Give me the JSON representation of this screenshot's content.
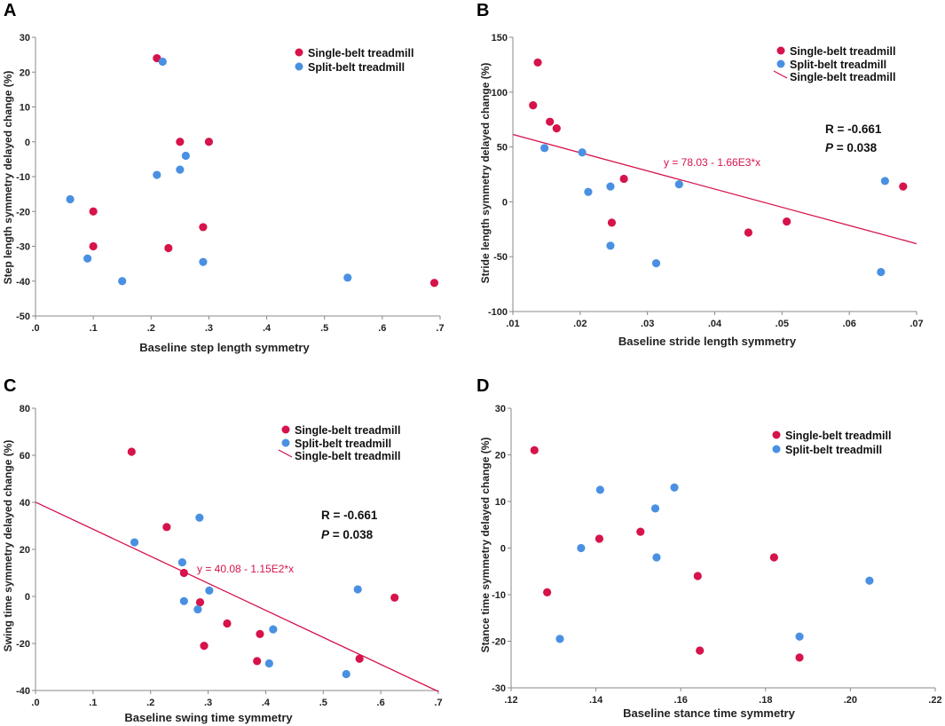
{
  "colors": {
    "single": "#d6134a",
    "split": "#4a90e2",
    "fit": "#d6134a"
  },
  "chart_data": [
    {
      "type": "scatter",
      "panel_label": "A",
      "xlabel": "Baseline step length symmetry",
      "ylabel": "Step length symmetry delayed change (%)",
      "xlim": [
        0,
        0.7
      ],
      "ylim": [
        -50,
        30
      ],
      "xticks": [
        0,
        0.1,
        0.2,
        0.3,
        0.4,
        0.5,
        0.6,
        0.7
      ],
      "xtick_labels": [
        ".0",
        ".1",
        ".2",
        ".3",
        ".4",
        ".5",
        ".6",
        ".7"
      ],
      "yticks": [
        -50,
        -40,
        -30,
        -20,
        -10,
        0,
        10,
        20,
        30
      ],
      "ytick_labels": [
        "-50",
        "-40",
        "-30",
        "-20",
        "-10",
        "0",
        "10",
        "20",
        "30"
      ],
      "legend": [
        "Single-belt treadmill",
        "Split-belt treadmill"
      ],
      "series": [
        {
          "name": "Single-belt treadmill",
          "points": [
            [
              0.1,
              -20
            ],
            [
              0.1,
              -30
            ],
            [
              0.21,
              24
            ],
            [
              0.25,
              0
            ],
            [
              0.3,
              0
            ],
            [
              0.23,
              -30.5
            ],
            [
              0.29,
              -24.5
            ],
            [
              0.69,
              -40.5
            ]
          ]
        },
        {
          "name": "Split-belt treadmill",
          "points": [
            [
              0.06,
              -16.5
            ],
            [
              0.09,
              -33.5
            ],
            [
              0.15,
              -40
            ],
            [
              0.22,
              23
            ],
            [
              0.21,
              -9.5
            ],
            [
              0.26,
              -4
            ],
            [
              0.25,
              -8
            ],
            [
              0.29,
              -34.5
            ],
            [
              0.54,
              -39
            ]
          ]
        }
      ]
    },
    {
      "type": "scatter",
      "panel_label": "B",
      "xlabel": "Baseline stride length symmetry",
      "ylabel": "Stride length symmetry delayed change (%)",
      "xlim": [
        0.01,
        0.07
      ],
      "ylim": [
        -100,
        150
      ],
      "xticks": [
        0.01,
        0.02,
        0.03,
        0.04,
        0.05,
        0.06,
        0.07
      ],
      "xtick_labels": [
        ".01",
        ".02",
        ".03",
        ".04",
        ".05",
        ".06",
        ".07"
      ],
      "yticks": [
        -100,
        -50,
        0,
        50,
        100,
        150
      ],
      "ytick_labels": [
        "-100",
        "-50",
        "0",
        "50",
        "100",
        "150"
      ],
      "legend": [
        "Single-belt treadmill",
        "Split-belt treadmill",
        "Single-belt treadmill"
      ],
      "r_text": "R = -0.661",
      "p_italic": "P",
      "p_rest": " = 0.038",
      "fit": {
        "intercept": 78.03,
        "slope": -1660,
        "equation": "y = 78.03 - 1.66E3*x"
      },
      "series": [
        {
          "name": "Single-belt treadmill",
          "points": [
            [
              0.0137,
              127
            ],
            [
              0.013,
              88
            ],
            [
              0.0155,
              73
            ],
            [
              0.0165,
              67
            ],
            [
              0.0265,
              21
            ],
            [
              0.0247,
              -19
            ],
            [
              0.045,
              -28
            ],
            [
              0.0507,
              -18
            ],
            [
              0.068,
              14
            ]
          ]
        },
        {
          "name": "Split-belt treadmill",
          "points": [
            [
              0.0147,
              49
            ],
            [
              0.0203,
              45
            ],
            [
              0.0212,
              9
            ],
            [
              0.0245,
              14
            ],
            [
              0.0245,
              -40
            ],
            [
              0.0313,
              -56
            ],
            [
              0.0347,
              16
            ],
            [
              0.0653,
              19
            ],
            [
              0.0647,
              -64
            ]
          ]
        }
      ]
    },
    {
      "type": "scatter",
      "panel_label": "C",
      "xlabel": "Baseline swing time symmetry",
      "ylabel": "Swing time symmetry delayed change (%)",
      "xlim": [
        0,
        0.7
      ],
      "ylim": [
        -40,
        80
      ],
      "xticks": [
        0,
        0.1,
        0.2,
        0.3,
        0.4,
        0.5,
        0.6,
        0.7
      ],
      "xtick_labels": [
        ".0",
        ".1",
        ".2",
        ".3",
        ".4",
        ".5",
        ".6",
        ".7"
      ],
      "yticks": [
        -40,
        -20,
        0,
        20,
        40,
        60,
        80
      ],
      "ytick_labels": [
        "-40",
        "-20",
        "0",
        "20",
        "40",
        "60",
        "80"
      ],
      "legend": [
        "Single-belt treadmill",
        "Split-belt treadmill",
        "Single-belt treadmill"
      ],
      "r_text": "R = -0.661",
      "p_italic": "P",
      "p_rest": " = 0.038",
      "fit": {
        "intercept": 40.08,
        "slope": -115,
        "equation": "y = 40.08 - 1.15E2*x"
      },
      "series": [
        {
          "name": "Single-belt treadmill",
          "points": [
            [
              0.167,
              61.5
            ],
            [
              0.228,
              29.5
            ],
            [
              0.258,
              10
            ],
            [
              0.286,
              -2.5
            ],
            [
              0.293,
              -21
            ],
            [
              0.333,
              -11.5
            ],
            [
              0.385,
              -27.5
            ],
            [
              0.39,
              -16
            ],
            [
              0.563,
              -26.5
            ],
            [
              0.624,
              -0.5
            ]
          ]
        },
        {
          "name": "Split-belt treadmill",
          "points": [
            [
              0.172,
              23
            ],
            [
              0.255,
              14.5
            ],
            [
              0.258,
              -2
            ],
            [
              0.282,
              -5.5
            ],
            [
              0.285,
              33.5
            ],
            [
              0.302,
              2.5
            ],
            [
              0.406,
              -28.5
            ],
            [
              0.413,
              -14
            ],
            [
              0.54,
              -33
            ],
            [
              0.56,
              3
            ]
          ]
        }
      ]
    },
    {
      "type": "scatter",
      "panel_label": "D",
      "xlabel": "Baseline stance time symmetry",
      "ylabel": "Stance time symmetry delayed change (%)",
      "xlim": [
        0.12,
        0.22
      ],
      "ylim": [
        -30,
        30
      ],
      "xticks": [
        0.12,
        0.14,
        0.16,
        0.18,
        0.2,
        0.22
      ],
      "xtick_labels": [
        ".12",
        ".14",
        ".16",
        ".18",
        ".20",
        ".22"
      ],
      "yticks": [
        -30,
        -20,
        -10,
        0,
        10,
        20,
        30
      ],
      "ytick_labels": [
        "-30",
        "-20",
        "-10",
        "0",
        "10",
        "20",
        "30"
      ],
      "legend": [
        "Single-belt treadmill",
        "Split-belt treadmill"
      ],
      "series": [
        {
          "name": "Single-belt treadmill",
          "points": [
            [
              0.1255,
              21
            ],
            [
              0.1285,
              -9.5
            ],
            [
              0.1408,
              2
            ],
            [
              0.1505,
              3.5
            ],
            [
              0.164,
              -6
            ],
            [
              0.1645,
              -22
            ],
            [
              0.182,
              -2
            ],
            [
              0.188,
              -23.5
            ]
          ]
        },
        {
          "name": "Split-belt treadmill",
          "points": [
            [
              0.1315,
              -19.5
            ],
            [
              0.1365,
              0
            ],
            [
              0.141,
              12.5
            ],
            [
              0.154,
              8.5
            ],
            [
              0.1543,
              -2
            ],
            [
              0.1585,
              13
            ],
            [
              0.188,
              -19
            ],
            [
              0.2045,
              -7
            ]
          ]
        }
      ]
    }
  ]
}
